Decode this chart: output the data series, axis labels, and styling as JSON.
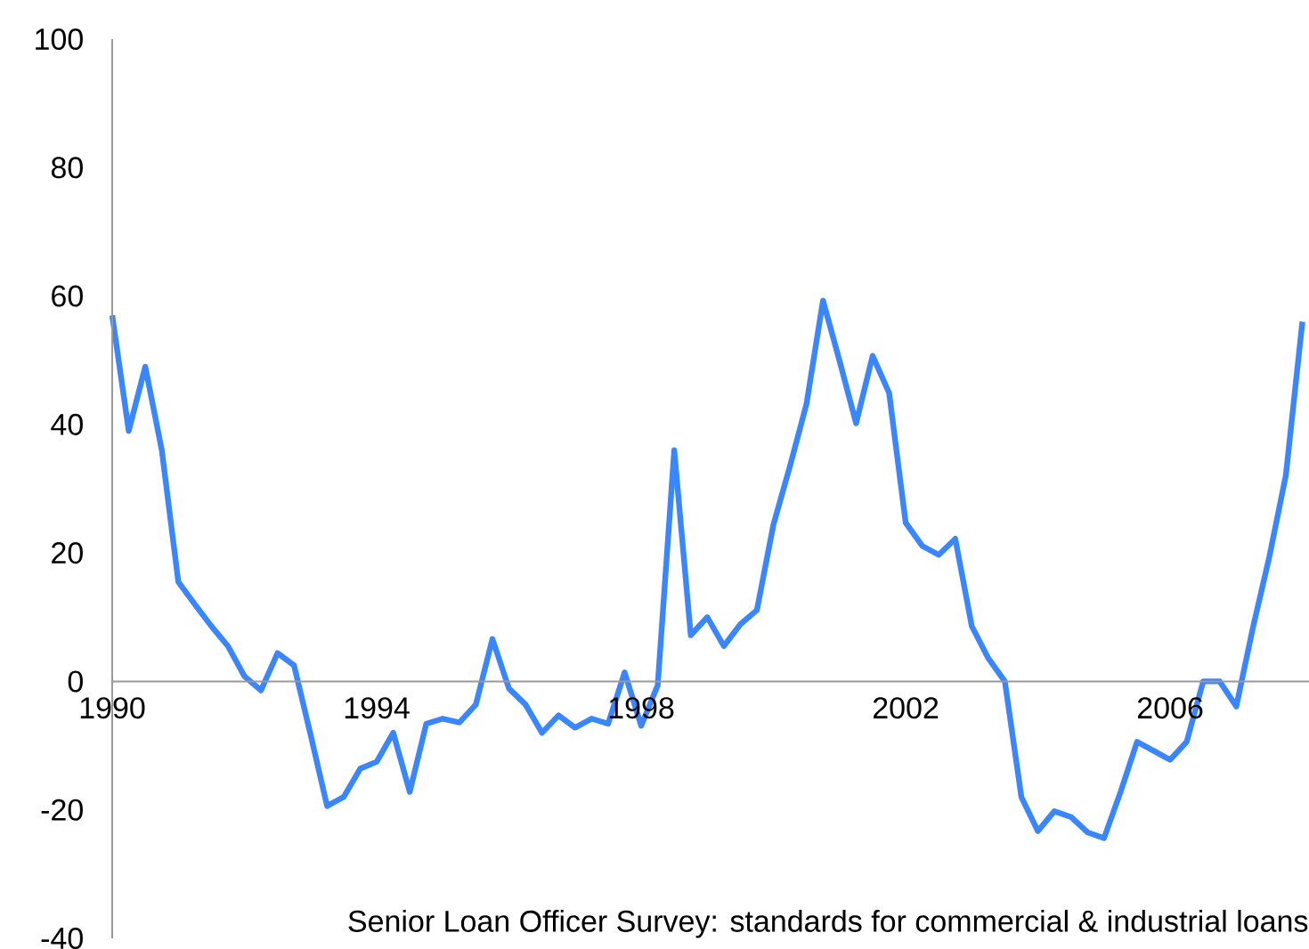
{
  "chart_data": {
    "type": "line",
    "annotations": [
      "Senior Loan Officer Survey: standards for commercial & industrial loans"
    ],
    "x": [
      1990,
      1990.25,
      1990.5,
      1990.75,
      1991,
      1991.25,
      1991.5,
      1991.75,
      1992,
      1992.25,
      1992.5,
      1992.75,
      1993,
      1993.25,
      1993.5,
      1993.75,
      1994,
      1994.25,
      1994.5,
      1994.75,
      1995,
      1995.25,
      1995.5,
      1995.75,
      1996,
      1996.25,
      1996.5,
      1996.75,
      1997,
      1997.25,
      1997.5,
      1997.75,
      1998,
      1998.25,
      1998.5,
      1998.75,
      1999,
      1999.25,
      1999.5,
      1999.75,
      2000,
      2000.25,
      2000.5,
      2000.75,
      2001,
      2001.25,
      2001.5,
      2001.75,
      2002,
      2002.25,
      2002.5,
      2002.75,
      2003,
      2003.25,
      2003.5,
      2003.75,
      2004,
      2004.25,
      2004.5,
      2004.75,
      2005,
      2005.25,
      2005.5,
      2005.75,
      2006,
      2006.25,
      2006.5,
      2006.75,
      2007,
      2007.25,
      2007.5,
      2007.75,
      2008
    ],
    "series": [
      {
        "color": "#3a86ff",
        "values": [
          57,
          39,
          49,
          36,
          15.5,
          12,
          8.6,
          5.5,
          0.8,
          -1.4,
          4.4,
          2.5,
          -8.3,
          -19.4,
          -18,
          -13.6,
          -12.5,
          -8,
          -17.2,
          -6.6,
          -5.8,
          -6.4,
          -3.6,
          6.6,
          -1.1,
          -3.6,
          -8,
          -5.3,
          -7.2,
          -5.8,
          -6.6,
          1.4,
          -6.9,
          -0.6,
          36,
          7.2,
          10,
          5.5,
          8.9,
          11.1,
          24.4,
          33.5,
          43.2,
          59.3,
          49.9,
          40.2,
          50.7,
          44.9,
          24.7,
          21.1,
          19.7,
          22.2,
          8.6,
          3.6,
          0,
          -18,
          -23.3,
          -20.2,
          -21.1,
          -23.5,
          -24.4,
          -17.2,
          -9.4,
          -10.8,
          -12.2,
          -9.4,
          0,
          0,
          -3.9,
          8.3,
          19.4,
          32.1,
          56
        ]
      }
    ],
    "xlim": [
      1990,
      2008.1
    ],
    "ylim": [
      -40,
      100
    ],
    "xticks": [
      1990,
      1994,
      1998,
      2002,
      2006
    ],
    "yticks": [
      -40,
      -20,
      0,
      20,
      40,
      60,
      80,
      100
    ],
    "grid": false,
    "marker": "none",
    "line_style": "solid"
  }
}
